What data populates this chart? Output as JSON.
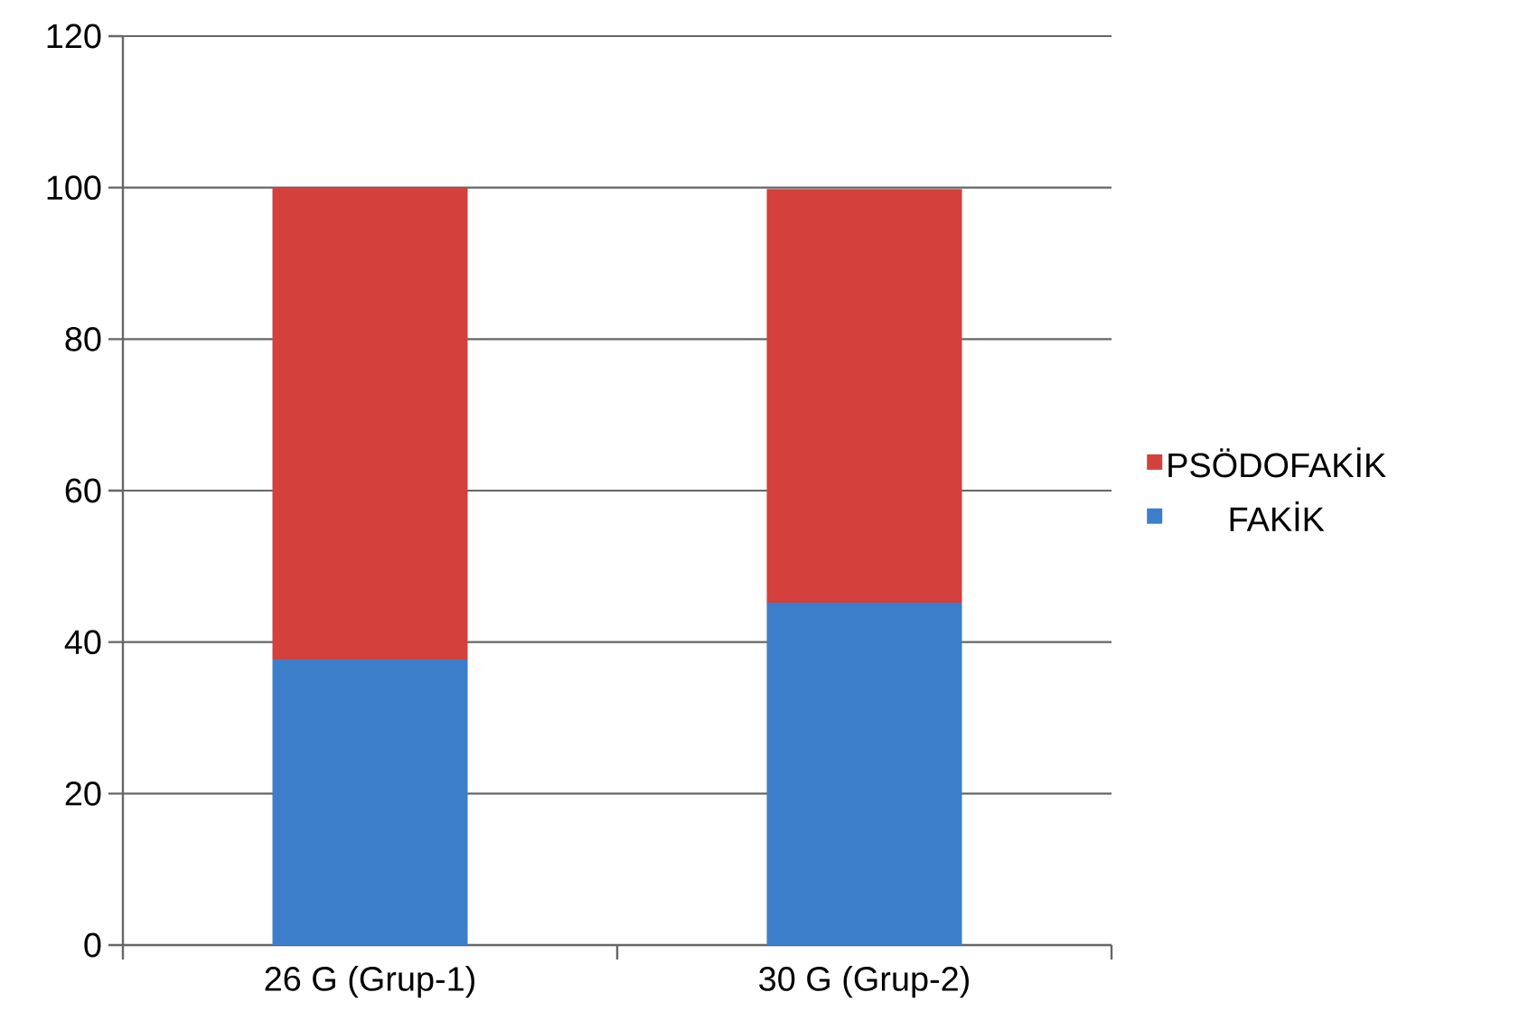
{
  "chart_data": {
    "type": "bar",
    "stacked": true,
    "categories": [
      "26 G (Grup-1)",
      "30 G (Grup-2)"
    ],
    "series": [
      {
        "name": "FAKİK",
        "color": "#3d7ecb",
        "values": [
          37.7,
          45.2
        ]
      },
      {
        "name": "PSÖDOFAKİK",
        "color": "#d4403c",
        "values": [
          62.3,
          54.6
        ]
      }
    ],
    "ylim": [
      0,
      120
    ],
    "yticks": [
      0,
      20,
      40,
      60,
      80,
      100,
      120
    ],
    "grid": "y",
    "legend": "right"
  }
}
